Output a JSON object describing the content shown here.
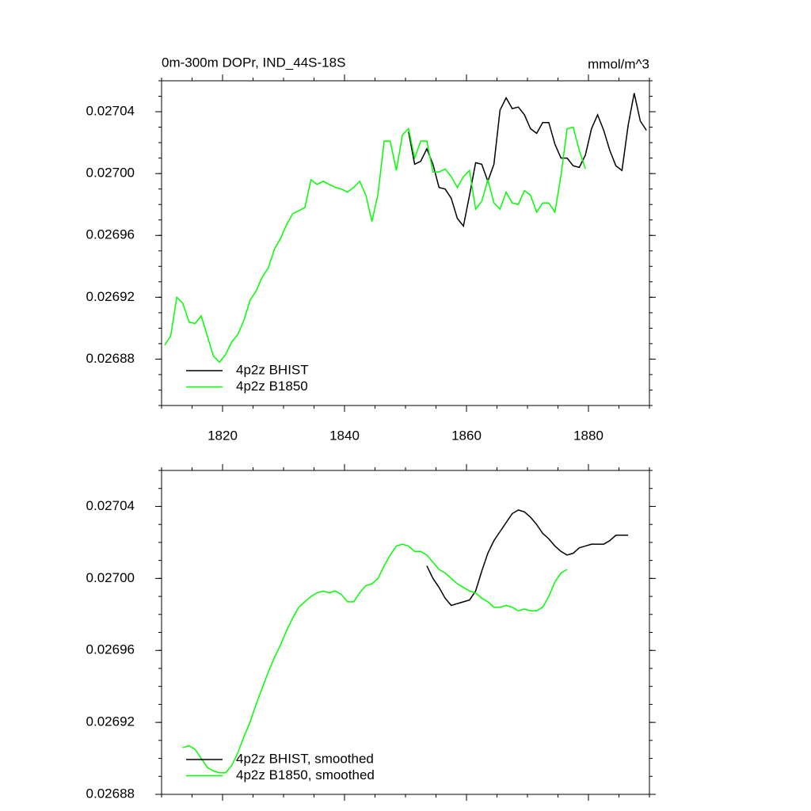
{
  "chart_data": [
    {
      "type": "line",
      "title": "0m-300m DOPr, IND_44S-18S",
      "units_label": "mmol/m^3",
      "xlim": [
        1810,
        1890
      ],
      "xticks": [
        1820,
        1840,
        1860,
        1880
      ],
      "ylim": [
        0.02685,
        0.02706
      ],
      "yticks": [
        0.02688,
        0.02692,
        0.02696,
        {
          "value": 0.027,
          "label": "0.02700"
        },
        0.02704
      ],
      "legend": "lower left",
      "xtick_labels_shown": true,
      "series": [
        {
          "name": "4p2z BHIST",
          "color": "#000000",
          "x": [
            1850.5,
            1851.5,
            1852.5,
            1853.5,
            1854.5,
            1855.5,
            1856.5,
            1857.5,
            1858.5,
            1859.5,
            1860.5,
            1861.5,
            1862.5,
            1863.5,
            1864.5,
            1865.5,
            1866.5,
            1867.5,
            1868.5,
            1869.5,
            1870.5,
            1871.5,
            1872.5,
            1873.5,
            1874.5,
            1875.5,
            1876.5,
            1877.5,
            1878.5,
            1879.5,
            1880.5,
            1881.5,
            1882.5,
            1883.5,
            1884.5,
            1885.5,
            1886.5,
            1887.5,
            1888.5,
            1889.5
          ],
          "values": [
            0.027027,
            0.027006,
            0.027008,
            0.027016,
            0.027006,
            0.026991,
            0.02699,
            0.026984,
            0.026971,
            0.026966,
            0.026986,
            0.027007,
            0.027006,
            0.026995,
            0.027006,
            0.027041,
            0.027049,
            0.027042,
            0.027043,
            0.027038,
            0.027029,
            0.027026,
            0.027033,
            0.027033,
            0.027019,
            0.02701,
            0.02701,
            0.027005,
            0.027004,
            0.027012,
            0.027029,
            0.027038,
            0.027028,
            0.027015,
            0.027005,
            0.027002,
            0.027031,
            0.027052,
            0.027034,
            0.027028
          ]
        },
        {
          "name": "4p2z B1850",
          "color": "#00ff00",
          "x": [
            1810.5,
            1811.5,
            1812.5,
            1813.5,
            1814.5,
            1815.5,
            1816.5,
            1817.5,
            1818.5,
            1819.5,
            1820.5,
            1821.5,
            1822.5,
            1823.5,
            1824.5,
            1825.5,
            1826.5,
            1827.5,
            1828.5,
            1829.5,
            1830.5,
            1831.5,
            1832.5,
            1833.5,
            1834.5,
            1835.5,
            1836.5,
            1837.5,
            1838.5,
            1839.5,
            1840.5,
            1841.5,
            1842.5,
            1843.5,
            1844.5,
            1845.5,
            1846.5,
            1847.5,
            1848.5,
            1849.5,
            1850.5,
            1851.5,
            1852.5,
            1853.5,
            1854.5,
            1855.5,
            1856.5,
            1857.5,
            1858.5,
            1859.5,
            1860.5,
            1861.5,
            1862.5,
            1863.5,
            1864.5,
            1865.5,
            1866.5,
            1867.5,
            1868.5,
            1869.5,
            1870.5,
            1871.5,
            1872.5,
            1873.5,
            1874.5,
            1875.5,
            1876.5,
            1877.5,
            1878.5,
            1879.5
          ],
          "values": [
            0.026889,
            0.026895,
            0.02692,
            0.026916,
            0.026904,
            0.026903,
            0.026908,
            0.026895,
            0.026882,
            0.026878,
            0.026883,
            0.026891,
            0.026896,
            0.026905,
            0.026918,
            0.026924,
            0.026933,
            0.026939,
            0.026951,
            0.026958,
            0.026967,
            0.026974,
            0.026976,
            0.026978,
            0.026996,
            0.026993,
            0.026995,
            0.026993,
            0.026991,
            0.02699,
            0.026988,
            0.026991,
            0.026995,
            0.026986,
            0.026969,
            0.026987,
            0.027021,
            0.027021,
            0.027002,
            0.027025,
            0.027029,
            0.02701,
            0.027021,
            0.027021,
            0.027001,
            0.027001,
            0.027003,
            0.026998,
            0.026991,
            0.026998,
            0.027002,
            0.026977,
            0.026982,
            0.026996,
            0.026981,
            0.026977,
            0.026988,
            0.026981,
            0.02698,
            0.026989,
            0.026986,
            0.026975,
            0.026981,
            0.026981,
            0.026975,
            0.026999,
            0.027029,
            0.02703,
            0.027015,
            0.027003
          ]
        }
      ]
    },
    {
      "type": "line",
      "xlim": [
        1810,
        1890
      ],
      "xticks": [
        1820,
        1840,
        1860,
        1880
      ],
      "ylim": [
        0.02688,
        0.02706
      ],
      "yticks": [
        0.02688,
        0.02692,
        0.02696,
        {
          "value": 0.027,
          "label": "0.02700"
        },
        0.02704
      ],
      "legend": "lower left",
      "xtick_labels_shown": false,
      "series": [
        {
          "name": "4p2z BHIST, smoothed",
          "color": "#000000",
          "x": [
            1853.5,
            1854.5,
            1855.5,
            1856.5,
            1857.5,
            1858.5,
            1859.5,
            1860.5,
            1861.5,
            1862.5,
            1863.5,
            1864.5,
            1865.5,
            1866.5,
            1867.5,
            1868.5,
            1869.5,
            1870.5,
            1871.5,
            1872.5,
            1873.5,
            1874.5,
            1875.5,
            1876.5,
            1877.5,
            1878.5,
            1879.5,
            1880.5,
            1881.5,
            1882.5,
            1883.5,
            1884.5,
            1885.5,
            1886.5
          ],
          "values": [
            0.027007,
            0.027,
            0.026995,
            0.026989,
            0.026985,
            0.026986,
            0.026987,
            0.026988,
            0.026993,
            0.027004,
            0.027014,
            0.027021,
            0.027026,
            0.027031,
            0.027036,
            0.027038,
            0.027037,
            0.027034,
            0.02703,
            0.027025,
            0.027022,
            0.027018,
            0.027015,
            0.027013,
            0.027014,
            0.027017,
            0.027018,
            0.027019,
            0.027019,
            0.027019,
            0.027021,
            0.027024,
            0.027024,
            0.027024
          ]
        },
        {
          "name": "4p2z B1850, smoothed",
          "color": "#00ff00",
          "x": [
            1813.5,
            1814.5,
            1815.5,
            1816.5,
            1817.5,
            1818.5,
            1819.5,
            1820.5,
            1821.5,
            1822.5,
            1823.5,
            1824.5,
            1825.5,
            1826.5,
            1827.5,
            1828.5,
            1829.5,
            1830.5,
            1831.5,
            1832.5,
            1833.5,
            1834.5,
            1835.5,
            1836.5,
            1837.5,
            1838.5,
            1839.5,
            1840.5,
            1841.5,
            1842.5,
            1843.5,
            1844.5,
            1845.5,
            1846.5,
            1847.5,
            1848.5,
            1849.5,
            1850.5,
            1851.5,
            1852.5,
            1853.5,
            1854.5,
            1855.5,
            1856.5,
            1857.5,
            1858.5,
            1859.5,
            1860.5,
            1861.5,
            1862.5,
            1863.5,
            1864.5,
            1865.5,
            1866.5,
            1867.5,
            1868.5,
            1869.5,
            1870.5,
            1871.5,
            1872.5,
            1873.5,
            1874.5,
            1875.5,
            1876.5
          ],
          "values": [
            0.026906,
            0.026907,
            0.026905,
            0.0269,
            0.026895,
            0.026893,
            0.026892,
            0.026892,
            0.026896,
            0.026903,
            0.026912,
            0.02692,
            0.02693,
            0.026939,
            0.026948,
            0.026956,
            0.026963,
            0.026971,
            0.026978,
            0.026984,
            0.026987,
            0.02699,
            0.026992,
            0.026993,
            0.026992,
            0.026993,
            0.026991,
            0.026987,
            0.026987,
            0.026992,
            0.026996,
            0.026997,
            0.027,
            0.027007,
            0.027013,
            0.027018,
            0.027019,
            0.027018,
            0.027015,
            0.027015,
            0.027013,
            0.027009,
            0.027005,
            0.027003,
            0.027,
            0.026997,
            0.026995,
            0.026993,
            0.026992,
            0.026989,
            0.026987,
            0.026984,
            0.026984,
            0.026985,
            0.026984,
            0.026982,
            0.026983,
            0.026982,
            0.026982,
            0.026984,
            0.02699,
            0.026998,
            0.027003,
            0.027005
          ]
        }
      ]
    }
  ]
}
